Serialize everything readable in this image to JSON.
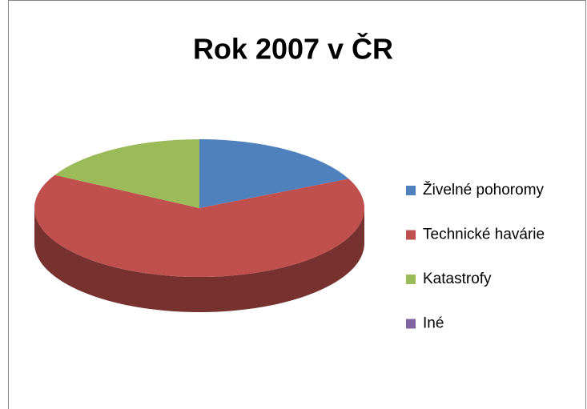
{
  "chart_data": {
    "type": "pie3d",
    "title": "Rok 2007 v ČR",
    "categories": [
      "Živelné pohoromy",
      "Technické havárie",
      "Katastrofy",
      "Iné"
    ],
    "values": [
      18,
      65,
      17,
      0
    ],
    "colors": [
      "#4f81bd",
      "#c0504d",
      "#9bbb59",
      "#8064a2"
    ],
    "legend": "right"
  }
}
